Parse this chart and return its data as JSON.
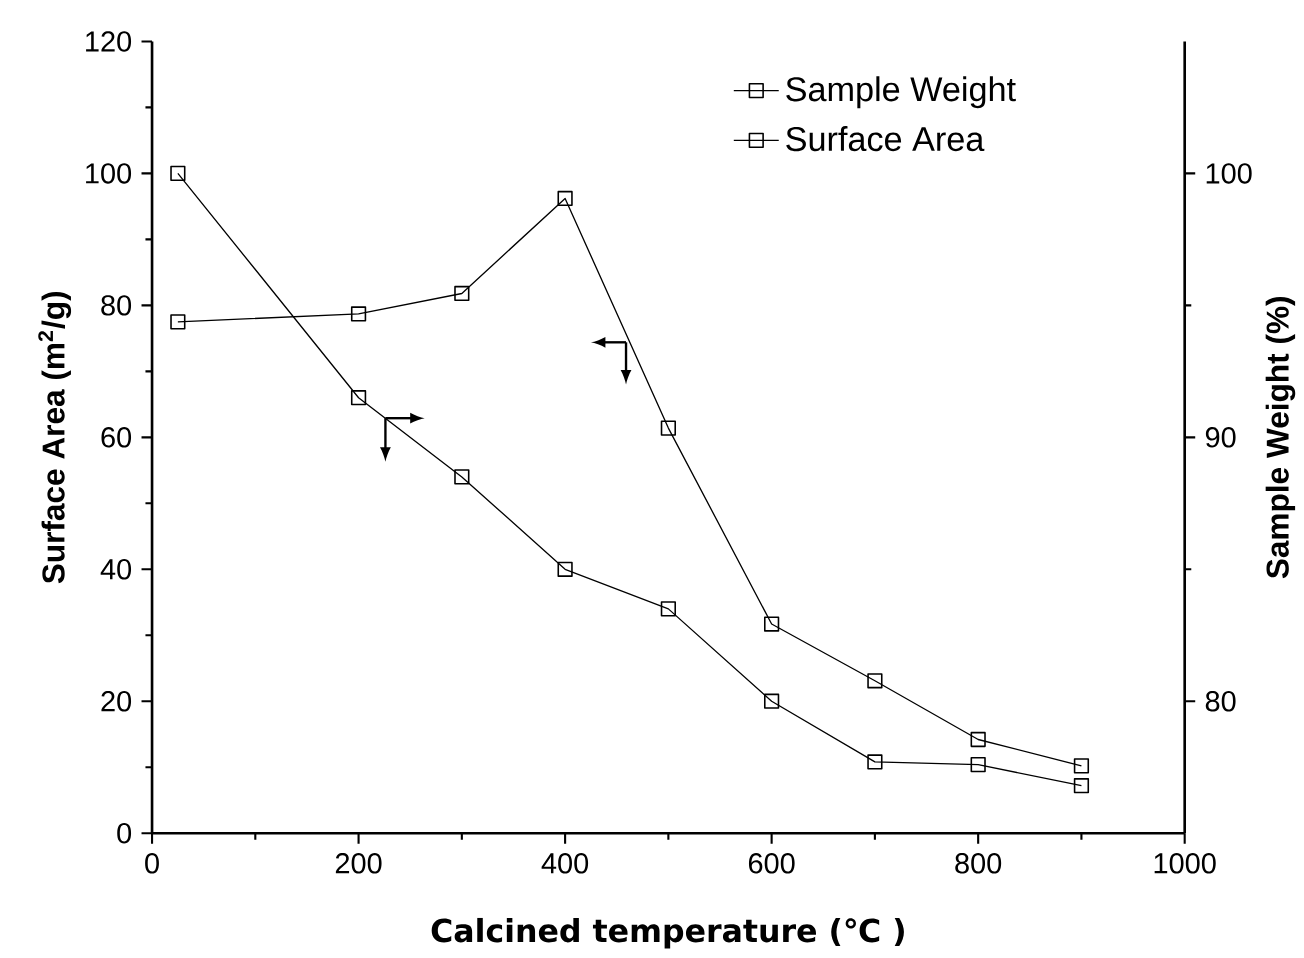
{
  "chart_data": {
    "type": "line",
    "xlabel": "Calcined temperature (℃ )",
    "ylabel": "Surface Area (m$^{2}$/g)",
    "y2label": "Sample Weight (%)",
    "x": [
      25,
      200,
      300,
      400,
      500,
      600,
      700,
      800,
      900
    ],
    "series": [
      {
        "name": "Sample Weight",
        "color": "#000000",
        "axis": "y2",
        "values": [
          100,
          91.5,
          88.5,
          85,
          83.5,
          80,
          77.7,
          77.6,
          76.8
        ]
      },
      {
        "name": "Surface Area",
        "color": "#000000",
        "values": [
          77.5,
          78.7,
          81.8,
          96.2,
          61.4,
          31.7,
          23.1,
          14.2,
          10.2
        ]
      }
    ],
    "xlim": [
      0,
      1000
    ],
    "xticks": [
      0,
      200,
      400,
      600,
      800,
      1000
    ],
    "ylim": [
      0,
      120
    ],
    "yticks": [
      0,
      20,
      40,
      60,
      80,
      100,
      120
    ],
    "y2lim": [
      75,
      105
    ],
    "y2ticks": [
      80,
      90,
      100
    ],
    "marker": "square",
    "line_style": "solid",
    "legend": "top right",
    "grid": false
  }
}
